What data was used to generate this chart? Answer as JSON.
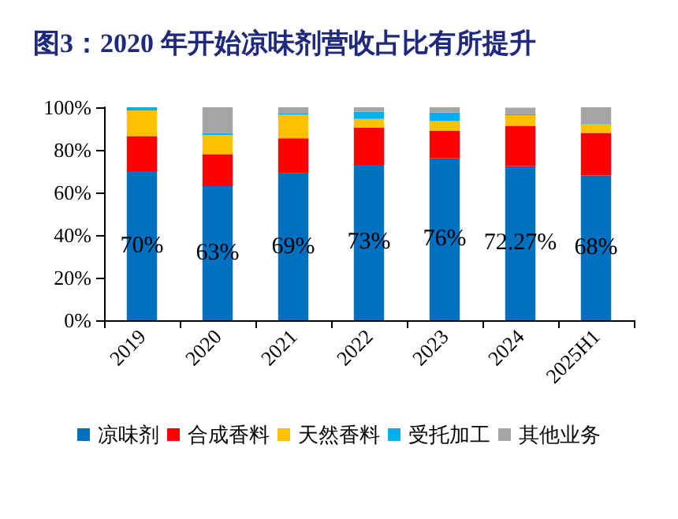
{
  "chart_data": {
    "type": "bar",
    "stacked": true,
    "title": "图3：2020 年开始凉味剂营收占比有所提升",
    "categories": [
      "2019",
      "2020",
      "2021",
      "2022",
      "2023",
      "2024",
      "2025H1"
    ],
    "series": [
      {
        "name": "凉味剂",
        "color": "#0070c0",
        "values": [
          70,
          63,
          69,
          73,
          76,
          72.27,
          68
        ],
        "value_labels": [
          "70%",
          "63%",
          "69%",
          "73%",
          "76%",
          "72.27%",
          "68%"
        ]
      },
      {
        "name": "合成香料",
        "color": "#ff0000",
        "values": [
          16.5,
          15,
          16.5,
          17.5,
          13,
          19,
          20
        ]
      },
      {
        "name": "天然香料",
        "color": "#ffc000",
        "values": [
          12,
          9,
          11,
          4,
          4.5,
          5,
          4
        ]
      },
      {
        "name": "受托加工",
        "color": "#00b0f0",
        "values": [
          1.5,
          1,
          0.5,
          3.5,
          4,
          0.5,
          0.5
        ]
      },
      {
        "name": "其他业务",
        "color": "#a5a5a5",
        "values": [
          null,
          12,
          3,
          2,
          2.5,
          3,
          7.5
        ]
      }
    ],
    "ylim": [
      0,
      100
    ],
    "yticks": [
      {
        "value": 0,
        "label": "0%"
      },
      {
        "value": 20,
        "label": "20%"
      },
      {
        "value": 40,
        "label": "40%"
      },
      {
        "value": 60,
        "label": "60%"
      },
      {
        "value": 80,
        "label": "80%"
      },
      {
        "value": 100,
        "label": "100%"
      }
    ],
    "grid": false,
    "legend": "bottom"
  }
}
